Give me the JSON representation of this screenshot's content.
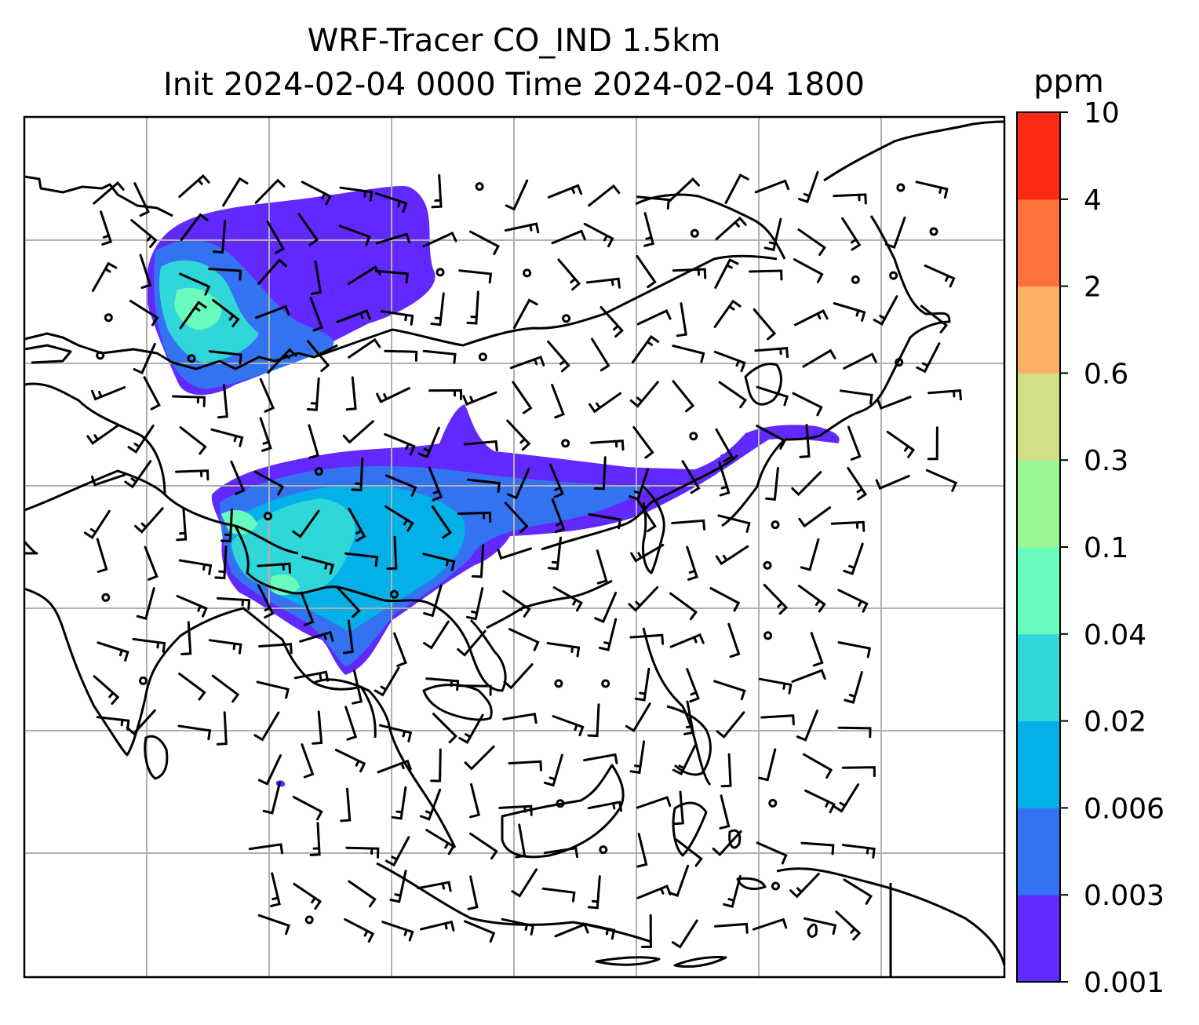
{
  "chart_data": {
    "type": "heatmap",
    "title": "WRF-Tracer CO_IND 1.5km",
    "subtitle": "Init 2024-02-04 0000 Time 2024-02-04 1800",
    "xlabel": "",
    "ylabel": "",
    "grid": true,
    "colorbar": {
      "label": "ppm",
      "placement": "right",
      "levels": [
        "0.001",
        "0.003",
        "0.006",
        "0.02",
        "0.04",
        "0.1",
        "0.3",
        "0.6",
        "2",
        "4",
        "10"
      ],
      "colors": [
        "#6229ff",
        "#3373f2",
        "#03b0e8",
        "#2fd7d8",
        "#67fbbd",
        "#9af794",
        "#d0e084",
        "#fdb062",
        "#ff713c",
        "#ff2815"
      ]
    },
    "series": [
      {
        "values": [
          {
            "region": "northwest plume",
            "level": "0.001-0.003",
            "core": "0.04-0.1"
          },
          {
            "region": "central plume",
            "level": "0.001-0.003",
            "core": "0.04-0.1"
          },
          {
            "region": "northeast filament",
            "level": "0.001-0.003"
          }
        ]
      }
    ]
  },
  "colors": {
    "coastline": "#000000",
    "grid": "#b0b0b0",
    "frame": "#000000"
  }
}
